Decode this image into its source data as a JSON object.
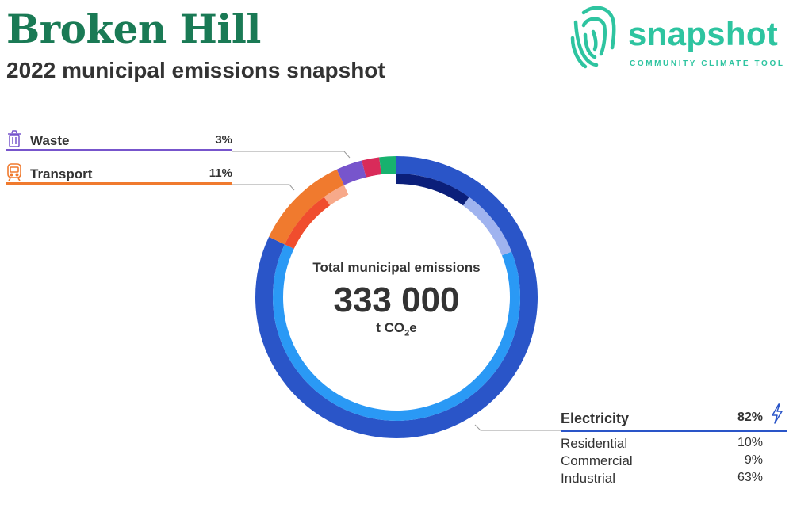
{
  "header": {
    "title": "Broken Hill",
    "subtitle": "2022 municipal emissions snapshot"
  },
  "logo": {
    "wordmark": "snapshot",
    "tagline": "COMMUNITY CLIMATE TOOL",
    "color": "#2ec4a0"
  },
  "center": {
    "title": "Total municipal emissions",
    "value": "333 000",
    "unit_prefix": "t CO",
    "unit_sub": "2",
    "unit_suffix": "e"
  },
  "legend": {
    "waste": {
      "label": "Waste",
      "percent": "3%",
      "color": "#7755cc",
      "icon": "trash-bin-icon"
    },
    "transport": {
      "label": "Transport",
      "percent": "11%",
      "color": "#f07a2e",
      "icon": "train-icon"
    },
    "electricity": {
      "label": "Electricity",
      "percent": "82%",
      "color": "#2a55c8",
      "icon": "lightning-bolt-icon",
      "subcategories": [
        {
          "label": "Residential",
          "percent": "10%"
        },
        {
          "label": "Commercial",
          "percent": "9%"
        },
        {
          "label": "Industrial",
          "percent": "63%"
        }
      ]
    }
  },
  "chart_data": {
    "type": "pie",
    "variant": "nested donut",
    "total": 333000,
    "outer_ring": [
      {
        "name": "Electricity",
        "value": 82,
        "color": "#2a55c8"
      },
      {
        "name": "Transport",
        "value": 11,
        "color": "#f07a2e"
      },
      {
        "name": "Waste",
        "value": 3,
        "color": "#7755cc"
      },
      {
        "name": "",
        "value": 2,
        "color": "#d92b5a"
      },
      {
        "name": "",
        "value": 2,
        "color": "#17b26e"
      }
    ],
    "inner_ring": [
      {
        "name": "Residential",
        "value": 10,
        "color": "#0b1f7a"
      },
      {
        "name": "Commercial",
        "value": 9,
        "color": "#9fb3ef"
      },
      {
        "name": "Industrial",
        "value": 63,
        "color": "#2a99f5"
      },
      {
        "name": "",
        "value": 8,
        "color": "#f04d2e"
      },
      {
        "name": "",
        "value": 3,
        "color": "#f7a98a"
      },
      {
        "name": "",
        "value": 7,
        "color": "#ffffff"
      }
    ]
  }
}
